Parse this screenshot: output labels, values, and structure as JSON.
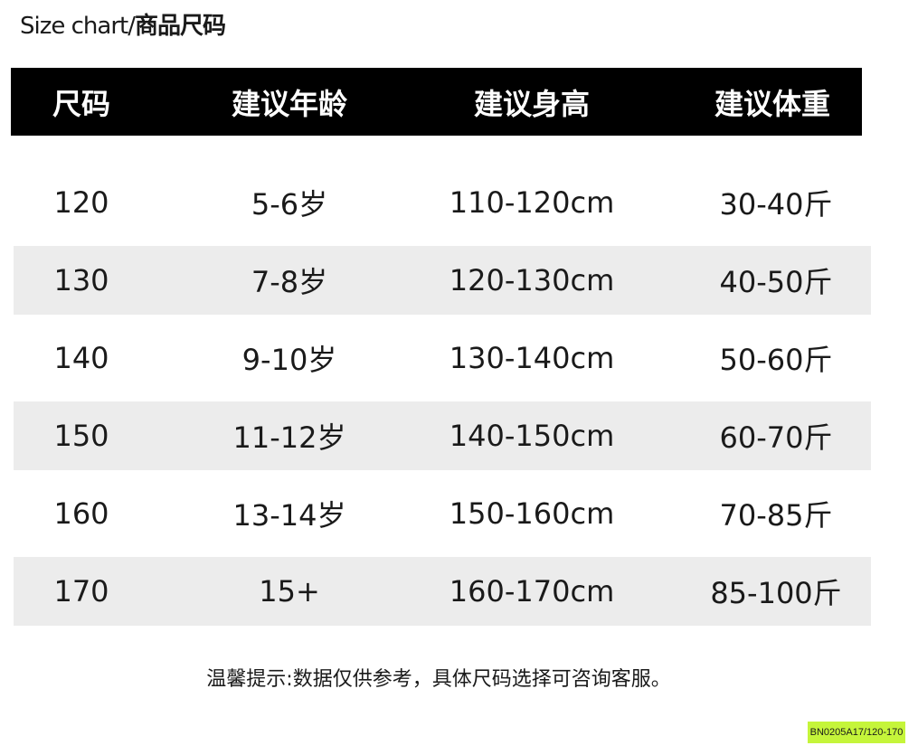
{
  "title": {
    "en": "Size chart/",
    "cn": "商品尺码"
  },
  "headers": [
    "尺码",
    "建议年龄",
    "建议身高",
    "建议体重"
  ],
  "rows": [
    [
      "120",
      "5-6岁",
      "110-120cm",
      "30-40斤"
    ],
    [
      "130",
      "7-8岁",
      "120-130cm",
      "40-50斤"
    ],
    [
      "140",
      "9-10岁",
      "130-140cm",
      "50-60斤"
    ],
    [
      "150",
      "11-12岁",
      "140-150cm",
      "60-70斤"
    ],
    [
      "160",
      "13-14岁",
      "150-160cm",
      "70-85斤"
    ],
    [
      "170",
      "15+",
      "160-170cm",
      "85-100斤"
    ]
  ],
  "note": "温馨提示:数据仅供参考，具体尺码选择可咨询客服。",
  "sku": "BN0205A17/120-170",
  "colors": {
    "header_bg": "#000000",
    "stripe": "#ececec",
    "sku_bg": "#c5f53a"
  }
}
